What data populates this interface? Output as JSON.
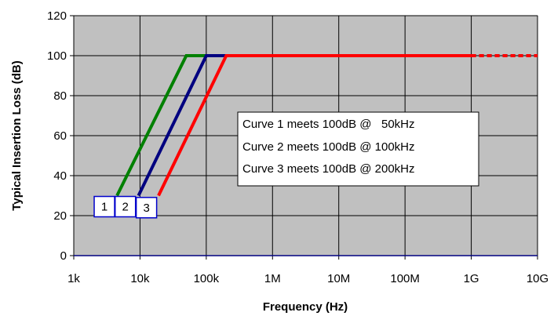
{
  "chart_data": {
    "type": "line",
    "title": "",
    "xlabel": "Frequency (Hz)",
    "ylabel": "Typical Insertion Loss (dB)",
    "x_scale": "log",
    "x_ticks": [
      1000,
      10000,
      100000,
      1000000,
      10000000,
      100000000,
      1000000000,
      10000000000
    ],
    "x_tick_labels": [
      "1k",
      "10k",
      "100k",
      "1M",
      "10M",
      "100M",
      "1G",
      "10G"
    ],
    "xlim": [
      1000,
      10000000000
    ],
    "ylim": [
      0,
      120
    ],
    "y_ticks": [
      0,
      20,
      40,
      60,
      80,
      100,
      120
    ],
    "y_tick_labels": [
      "0",
      "20",
      "40",
      "60",
      "80",
      "100",
      "120"
    ],
    "grid": true,
    "plot_background": "#c0c0c0",
    "series": [
      {
        "color": "#008000",
        "x": [
          4500,
          50000,
          1000000000
        ],
        "y": [
          30,
          100,
          100
        ],
        "dashed_extension": {
          "x": [
            1000000000,
            10000000000
          ],
          "y": [
            100,
            100
          ]
        }
      },
      {
        "color": "#000080",
        "x": [
          9500,
          100000,
          1000000000
        ],
        "y": [
          30,
          100,
          100
        ],
        "dashed_extension": {
          "x": [
            1000000000,
            10000000000
          ],
          "y": [
            100,
            100
          ]
        }
      },
      {
        "color": "#ff0000",
        "x": [
          19000,
          200000,
          1000000000
        ],
        "y": [
          30,
          100,
          100
        ],
        "dashed_extension": {
          "x": [
            1000000000,
            10000000000
          ],
          "y": [
            100,
            100
          ]
        }
      }
    ],
    "curve_markers": [
      {
        "label": "1",
        "x": 2900,
        "y": 24.5
      },
      {
        "label": "2",
        "x": 6000,
        "y": 24.5
      },
      {
        "label": "3",
        "x": 12500,
        "y": 24
      }
    ],
    "annotation_lines": [
      "Curve 1 meets 100dB @   50kHz",
      "Curve 2 meets 100dB @ 100kHz",
      "Curve 3 meets 100dB @ 200kHz"
    ]
  },
  "colors": {
    "grid": "#000000",
    "axis": "#000080",
    "marker_border": "#0000cc"
  }
}
